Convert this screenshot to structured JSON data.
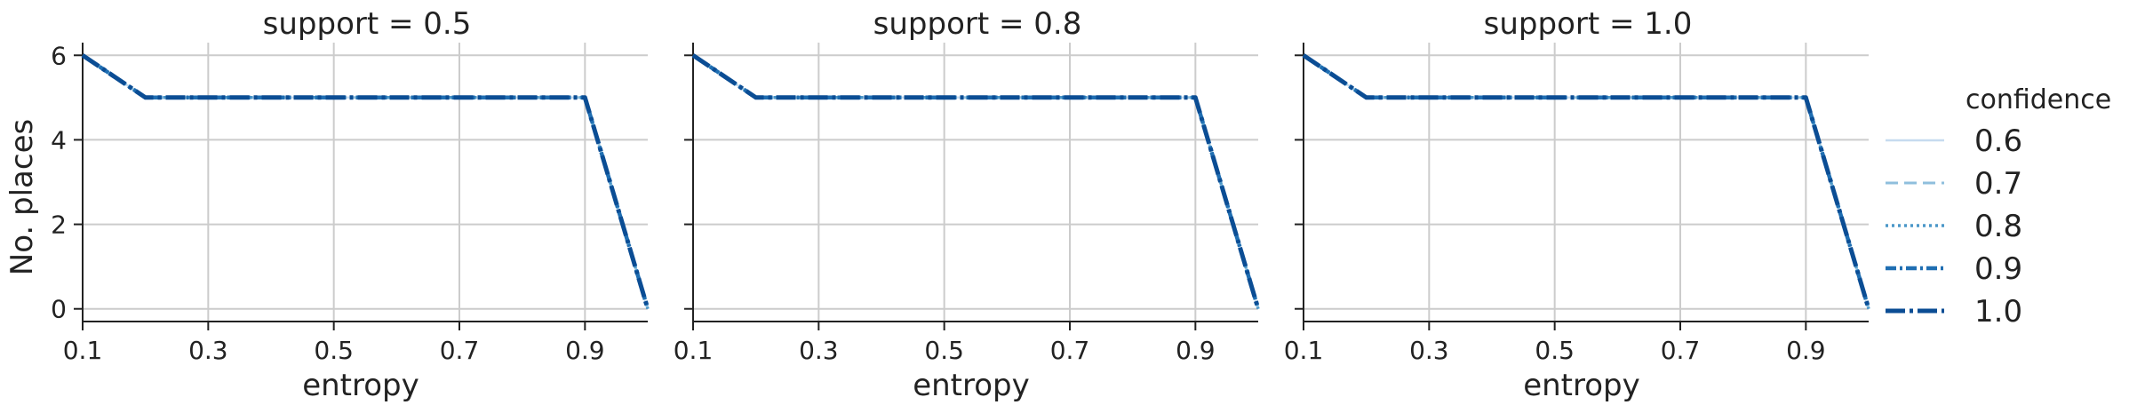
{
  "chart_data": {
    "type": "line",
    "xlabel": "entropy",
    "ylabel": "No. places",
    "xlim": [
      0.1,
      1.0
    ],
    "ylim": [
      -0.3,
      6.3
    ],
    "xticks": [
      "0.1",
      "0.3",
      "0.5",
      "0.7",
      "0.9"
    ],
    "xtick_values": [
      0.1,
      0.3,
      0.5,
      0.7,
      0.9
    ],
    "yticks": [
      "0",
      "2",
      "4",
      "6"
    ],
    "ytick_values": [
      0,
      2,
      4,
      6
    ],
    "grid": true,
    "x": [
      0.1,
      0.2,
      0.3,
      0.4,
      0.5,
      0.6,
      0.7,
      0.8,
      0.9,
      1.0
    ],
    "facets": [
      {
        "title": "support = 0.5",
        "series": [
          {
            "name": "0.6",
            "values": [
              6,
              5,
              5,
              5,
              5,
              5,
              5,
              5,
              5,
              0
            ]
          },
          {
            "name": "0.7",
            "values": [
              6,
              5,
              5,
              5,
              5,
              5,
              5,
              5,
              5,
              0
            ]
          },
          {
            "name": "0.8",
            "values": [
              6,
              5,
              5,
              5,
              5,
              5,
              5,
              5,
              5,
              0
            ]
          },
          {
            "name": "0.9",
            "values": [
              6,
              5,
              5,
              5,
              5,
              5,
              5,
              5,
              5,
              0
            ]
          },
          {
            "name": "1.0",
            "values": [
              6,
              5,
              5,
              5,
              5,
              5,
              5,
              5,
              5,
              0
            ]
          }
        ]
      },
      {
        "title": "support = 0.8",
        "series": [
          {
            "name": "0.6",
            "values": [
              6,
              5,
              5,
              5,
              5,
              5,
              5,
              5,
              5,
              0
            ]
          },
          {
            "name": "0.7",
            "values": [
              6,
              5,
              5,
              5,
              5,
              5,
              5,
              5,
              5,
              0
            ]
          },
          {
            "name": "0.8",
            "values": [
              6,
              5,
              5,
              5,
              5,
              5,
              5,
              5,
              5,
              0
            ]
          },
          {
            "name": "0.9",
            "values": [
              6,
              5,
              5,
              5,
              5,
              5,
              5,
              5,
              5,
              0
            ]
          },
          {
            "name": "1.0",
            "values": [
              6,
              5,
              5,
              5,
              5,
              5,
              5,
              5,
              5,
              0
            ]
          }
        ]
      },
      {
        "title": "support = 1.0",
        "series": [
          {
            "name": "0.6",
            "values": [
              6,
              5,
              5,
              5,
              5,
              5,
              5,
              5,
              5,
              0
            ]
          },
          {
            "name": "0.7",
            "values": [
              6,
              5,
              5,
              5,
              5,
              5,
              5,
              5,
              5,
              0
            ]
          },
          {
            "name": "0.8",
            "values": [
              6,
              5,
              5,
              5,
              5,
              5,
              5,
              5,
              5,
              0
            ]
          },
          {
            "name": "0.9",
            "values": [
              6,
              5,
              5,
              5,
              5,
              5,
              5,
              5,
              5,
              0
            ]
          },
          {
            "name": "1.0",
            "values": [
              6,
              5,
              5,
              5,
              5,
              5,
              5,
              5,
              5,
              0
            ]
          }
        ]
      }
    ],
    "legend": {
      "title": "confidence",
      "placement": "right",
      "entries": [
        {
          "label": "0.6",
          "color": "#c6dbef",
          "style": "solid"
        },
        {
          "label": "0.7",
          "color": "#8fbfdd",
          "style": "dashed"
        },
        {
          "label": "0.8",
          "color": "#4b97c9",
          "style": "dotted"
        },
        {
          "label": "0.9",
          "color": "#1f6eb2",
          "style": "dashdot"
        },
        {
          "label": "1.0",
          "color": "#0b4d94",
          "style": "longdashdot"
        }
      ]
    }
  }
}
